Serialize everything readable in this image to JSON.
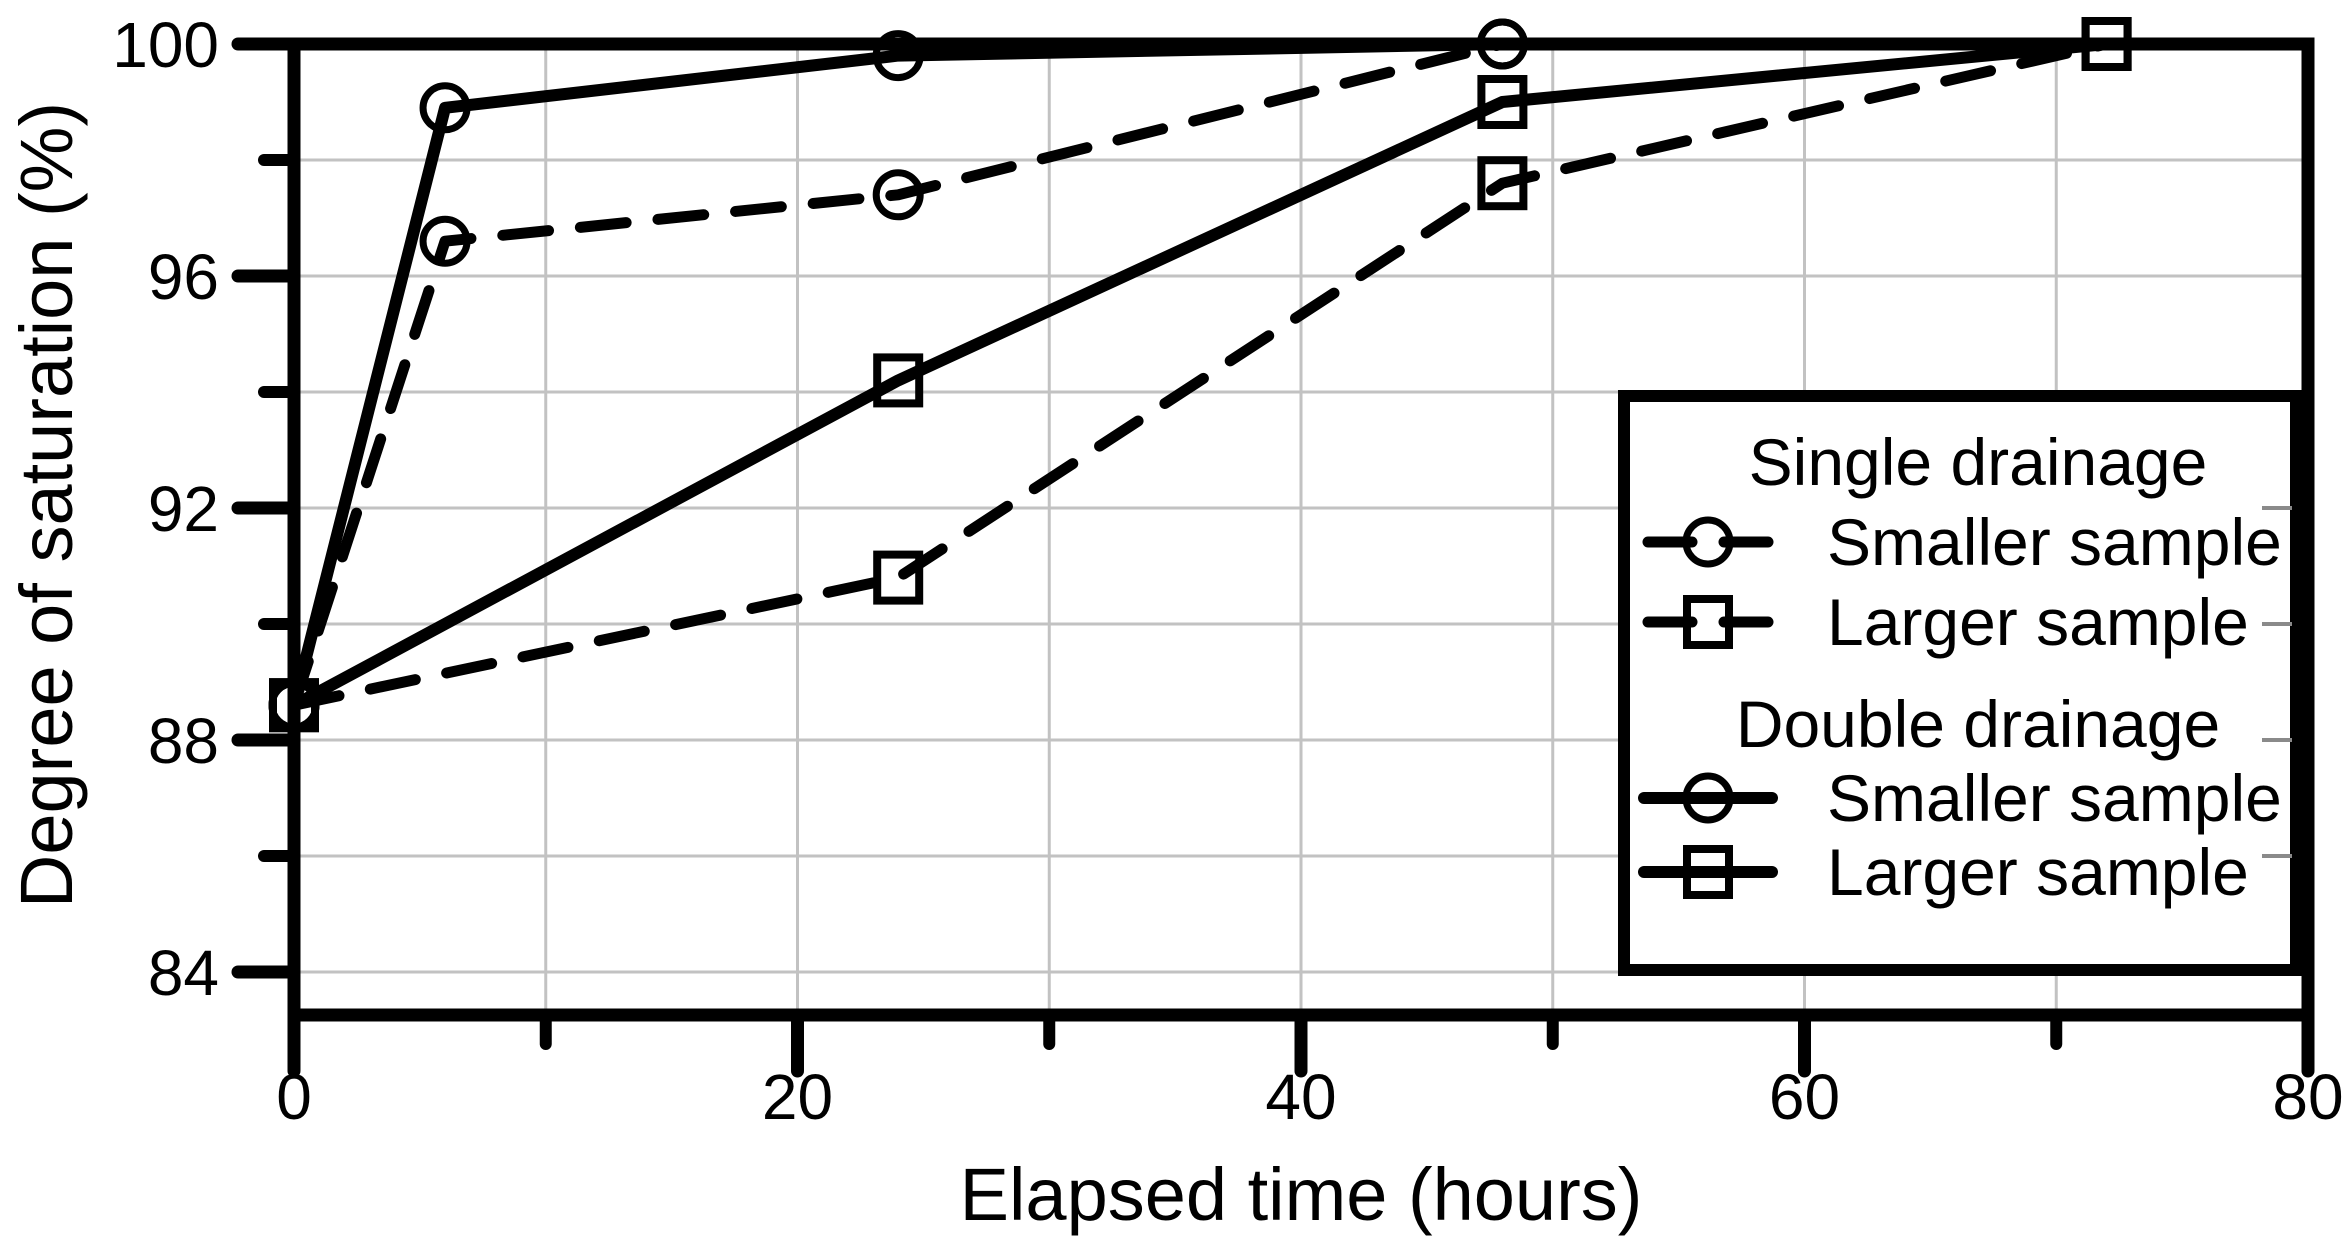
{
  "chart_data": {
    "type": "line",
    "title": "",
    "xlabel": "Elapsed time (hours)",
    "ylabel": "Degree of saturation (%)",
    "xlim": [
      0,
      80
    ],
    "ylim": [
      84,
      100
    ],
    "x_major_ticks": [
      0,
      20,
      40,
      60,
      80
    ],
    "x_minor_ticks": [
      10,
      30,
      50,
      70
    ],
    "y_major_ticks": [
      100,
      96,
      92,
      88,
      84
    ],
    "y_minor_ticks": [
      98,
      94,
      90,
      86
    ],
    "grid": {
      "x_interval_hours": 10,
      "y_interval_percent": 2,
      "color": "#c2c2c2"
    },
    "axis_color": "#000000",
    "background_color": "#ffffff",
    "legend": {
      "position": "lower right",
      "groups": [
        {
          "heading": "Single drainage",
          "entries": [
            {
              "label": "Smaller sample",
              "series_key": "single_smaller",
              "line_style": "dashed",
              "marker": "circle"
            },
            {
              "label": "Larger sample",
              "series_key": "single_larger",
              "line_style": "dashed",
              "marker": "square"
            }
          ]
        },
        {
          "heading": "Double drainage",
          "entries": [
            {
              "label": "Smaller sample",
              "series_key": "double_smaller",
              "line_style": "solid",
              "marker": "circle"
            },
            {
              "label": "Larger sample",
              "series_key": "double_larger",
              "line_style": "solid",
              "marker": "square"
            }
          ]
        }
      ]
    },
    "series": [
      {
        "key": "single_smaller",
        "name": "Single drainage - Smaller sample",
        "line_style": "dashed",
        "marker": "circle",
        "color": "#000000",
        "points": [
          [
            0,
            88.6
          ],
          [
            6,
            96.6
          ],
          [
            24,
            97.4
          ],
          [
            48,
            100
          ]
        ]
      },
      {
        "key": "single_larger",
        "name": "Single drainage - Larger sample",
        "line_style": "dashed",
        "marker": "square",
        "color": "#000000",
        "points": [
          [
            0,
            88.6
          ],
          [
            24,
            90.8
          ],
          [
            48,
            97.6
          ],
          [
            72,
            100
          ]
        ]
      },
      {
        "key": "double_smaller",
        "name": "Double drainage - Smaller sample",
        "line_style": "solid",
        "marker": "circle",
        "color": "#000000",
        "points": [
          [
            0,
            88.6
          ],
          [
            6,
            98.9
          ],
          [
            24,
            99.8
          ],
          [
            48,
            100
          ]
        ]
      },
      {
        "key": "double_larger",
        "name": "Double drainage - Larger sample",
        "line_style": "solid",
        "marker": "square",
        "color": "#000000",
        "points": [
          [
            0,
            88.6
          ],
          [
            24,
            94.2
          ],
          [
            48,
            99.0
          ],
          [
            72,
            100
          ]
        ]
      }
    ]
  }
}
